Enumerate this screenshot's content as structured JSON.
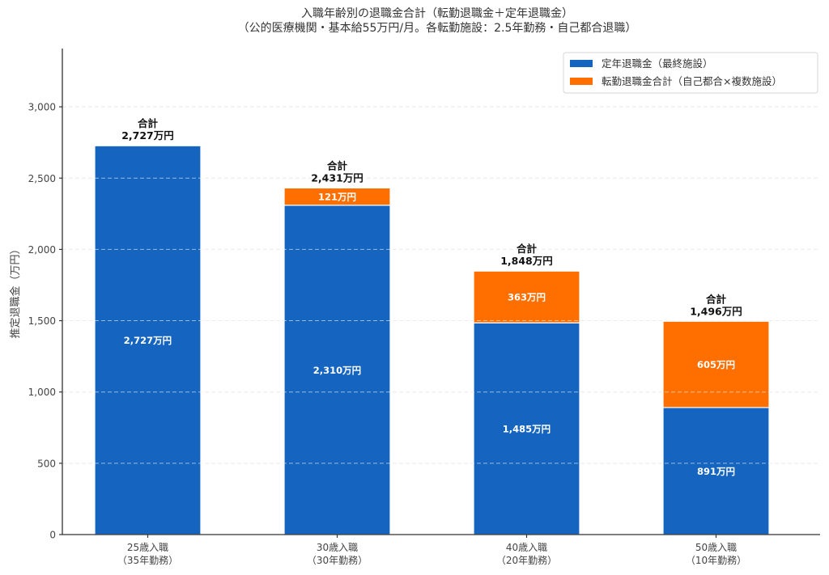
{
  "chart_data": {
    "type": "bar",
    "stacked": true,
    "title": "入職年齢別の退職金合計（転勤退職金＋定年退職金）",
    "subtitle": "（公的医療機関・基本給55万円/月。各転勤施設：2.5年勤務・自己都合退職）",
    "xlabel": "",
    "ylabel": "推定退職金（万円）",
    "ylim": [
      0,
      3409
    ],
    "yticks": [
      0,
      500,
      1000,
      1500,
      2000,
      2500,
      3000
    ],
    "ytick_labels": [
      "0",
      "500",
      "1,000",
      "1,500",
      "2,000",
      "2,500",
      "3,000"
    ],
    "grid": "y-dashed",
    "legend_position": "top-right",
    "categories": [
      {
        "line1": "25歳入職",
        "line2": "（35年勤務）"
      },
      {
        "line1": "30歳入職",
        "line2": "（30年勤務）"
      },
      {
        "line1": "40歳入職",
        "line2": "（20年勤務）"
      },
      {
        "line1": "50歳入職",
        "line2": "（10年勤務）"
      }
    ],
    "series": [
      {
        "name": "定年退職金（最終施設）",
        "color": "#1565c0",
        "values": [
          2727,
          2310,
          1485,
          891
        ],
        "labels": [
          "2,727万円",
          "2,310万円",
          "1,485万円",
          "891万円"
        ]
      },
      {
        "name": "転勤退職金合計（自己都合×複数施設）",
        "color": "#ff6f00",
        "values": [
          0,
          121,
          363,
          605
        ],
        "labels": [
          "",
          "121万円",
          "363万円",
          "605万円"
        ]
      }
    ],
    "totals": {
      "heading": "合計",
      "values": [
        2727,
        2431,
        1848,
        1496
      ],
      "labels": [
        "2,727万円",
        "2,431万円",
        "1,848万円",
        "1,496万円"
      ]
    }
  }
}
